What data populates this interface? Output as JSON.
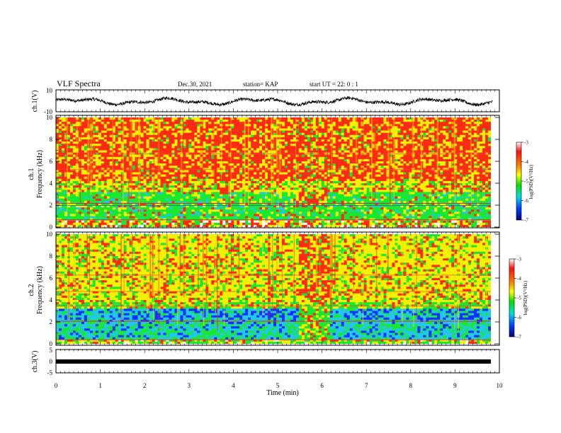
{
  "header": {
    "title": "VLF Spectra",
    "date": "Dec.30, 2021",
    "station": "station= KAP",
    "start": "start  UT =   22: 0  : 1"
  },
  "chart_data": [
    {
      "type": "line",
      "id": "ch1-waveform",
      "ylabel": "ch.1(V)",
      "xlim": [
        0,
        10
      ],
      "ylim": [
        -10,
        10
      ],
      "yticks": [
        "10",
        "-10"
      ],
      "x_end": 9.85,
      "description_level": "noisy waveform oscillating roughly between -5 and 3 V"
    },
    {
      "type": "heatmap",
      "id": "ch1-spectrogram",
      "ylabel": "ch.1\nFrequency (kHz)",
      "xlim": [
        0,
        10
      ],
      "ylim": [
        0,
        10
      ],
      "yticks": [
        "0",
        "2",
        "4",
        "6",
        "8",
        "10"
      ],
      "colorbar": {
        "label": "log(PSD)(V²/Hz)",
        "range": [
          -7,
          -3
        ],
        "ticks": [
          "-3",
          "-4",
          "-5",
          "-6",
          "-7"
        ]
      },
      "bands": [
        {
          "from": 0,
          "to": 0.6,
          "level": "red/mixed"
        },
        {
          "from": 0.6,
          "to": 3.3,
          "level": "green (-5)"
        },
        {
          "from": 3.3,
          "to": 10,
          "level": "red/yellow (-3.5)"
        }
      ]
    },
    {
      "type": "heatmap",
      "id": "ch2-spectrogram",
      "ylabel": "ch.2\nFrequency (kHz)",
      "xlim": [
        0,
        10
      ],
      "ylim": [
        0,
        10
      ],
      "yticks": [
        "0",
        "2",
        "4",
        "6",
        "8",
        "10"
      ],
      "colorbar": {
        "label": "log(PSD)(V²/Hz)",
        "range": [
          -7,
          -3
        ],
        "ticks": [
          "-3",
          "-4",
          "-5",
          "-6",
          "-7"
        ]
      },
      "bands": [
        {
          "from": 0,
          "to": 0.5,
          "level": "green/yellow"
        },
        {
          "from": 0.5,
          "to": 3.3,
          "level": "blue/cyan (-5.5)"
        },
        {
          "from": 3.3,
          "to": 10,
          "level": "yellow (-4)"
        }
      ]
    },
    {
      "type": "line",
      "id": "ch3-waveform",
      "ylabel": "ch.3(V)",
      "xlim": [
        0,
        10
      ],
      "ylim": [
        -5,
        5
      ],
      "yticks": [
        "5",
        "0",
        "-5"
      ],
      "value": -0.5
    }
  ],
  "xaxis": {
    "label": "Time (min)",
    "ticks": [
      "0",
      "1",
      "2",
      "3",
      "4",
      "5",
      "6",
      "7",
      "8",
      "9",
      "10"
    ]
  },
  "colors": {
    "red": "#ff2a14",
    "yellow": "#f2f200",
    "green": "#18e830",
    "cyan": "#22c8e8",
    "blue": "#1030ff"
  }
}
